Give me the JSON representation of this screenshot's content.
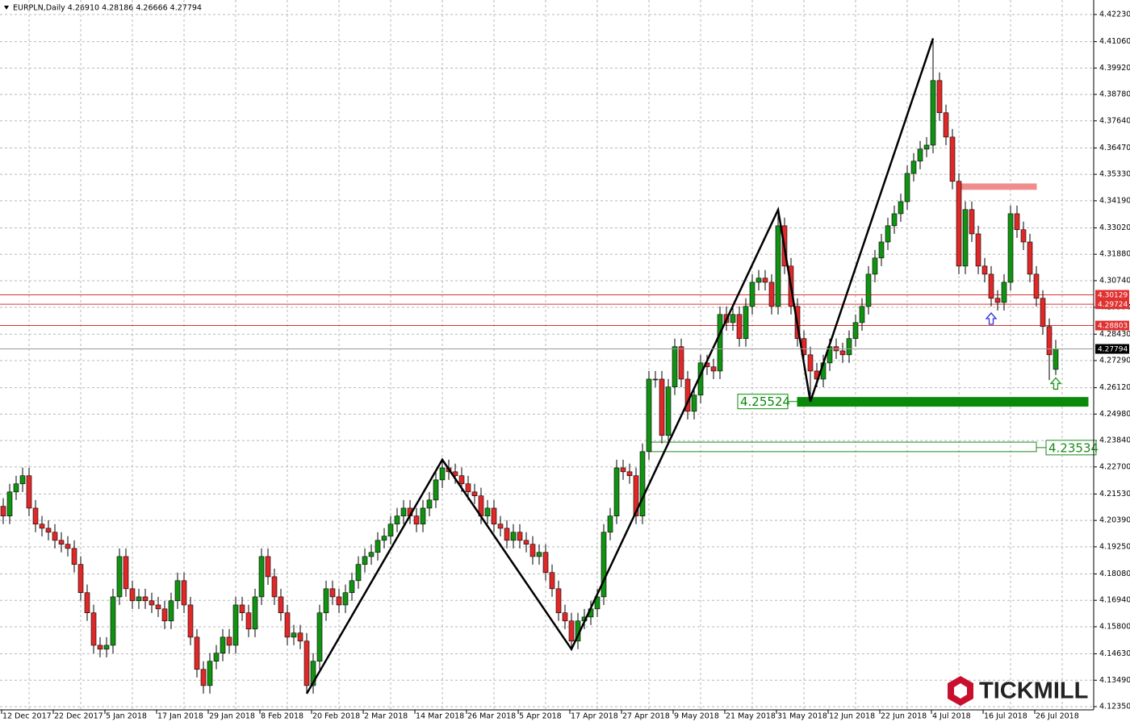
{
  "chart_data": {
    "type": "candlestick",
    "title": "EURPLN,Daily  4.26910 4.28186 4.26666 4.27794",
    "brand": "TICKMILL",
    "categories": [
      "12 Dec 2017",
      null,
      null,
      null,
      null,
      null,
      null,
      null,
      "22 Dec 2017",
      null,
      null,
      null,
      null,
      null,
      null,
      null,
      "5 Jan 2018",
      null,
      null,
      null,
      null,
      null,
      null,
      null,
      "17 Jan 2018",
      null,
      null,
      null,
      null,
      null,
      null,
      null,
      "29 Jan 2018",
      null,
      null,
      null,
      null,
      null,
      null,
      null,
      "8 Feb 2018",
      null,
      null,
      null,
      null,
      null,
      null,
      null,
      "20 Feb 2018",
      null,
      null,
      null,
      null,
      null,
      null,
      null,
      "2 Mar 2018",
      null,
      null,
      null,
      null,
      null,
      null,
      null,
      "14 Mar 2018",
      null,
      null,
      null,
      null,
      null,
      null,
      null,
      "26 Mar 2018",
      null,
      null,
      null,
      null,
      null,
      null,
      null,
      "5 Apr 2018",
      null,
      null,
      null,
      null,
      null,
      null,
      null,
      "17 Apr 2018",
      null,
      null,
      null,
      null,
      null,
      null,
      null,
      "27 Apr 2018",
      null,
      null,
      null,
      null,
      null,
      null,
      null,
      "9 May 2018",
      null,
      null,
      null,
      null,
      null,
      null,
      null,
      "21 May 2018",
      null,
      null,
      null,
      null,
      null,
      null,
      null,
      "31 May 2018",
      null,
      null,
      null,
      null,
      null,
      null,
      null,
      "12 Jun 2018",
      null,
      null,
      null,
      null,
      null,
      null,
      null,
      "22 Jun 2018",
      null,
      null,
      null,
      null,
      null,
      null,
      null,
      "4 Jul 2018",
      null,
      null,
      null,
      null,
      null,
      null,
      null,
      "16 Jul 2018",
      null,
      null,
      null,
      null,
      null,
      null,
      null,
      "26 Jul 2018",
      null,
      null,
      null
    ],
    "open": [
      4.21,
      4.2058,
      4.2162,
      4.2197,
      4.2232,
      4.2092,
      4.2023,
      4.2005,
      4.1988,
      4.1953,
      4.1936,
      4.1918,
      4.1849,
      4.1727,
      4.164,
      4.15,
      4.1483,
      4.15,
      4.1709,
      4.1883,
      4.1744,
      4.1692,
      4.1709,
      4.1692,
      4.1674,
      4.1657,
      4.1605,
      4.1692,
      4.1779,
      4.1674,
      4.1535,
      4.1396,
      4.1326,
      4.1431,
      4.1466,
      4.1535,
      4.15,
      4.1674,
      4.164,
      4.157,
      4.1709,
      4.1883,
      4.1796,
      4.1709,
      4.164,
      4.1535,
      4.1553,
      4.1518,
      4.1326,
      4.1431,
      4.164,
      4.1744,
      4.1709,
      4.1674,
      4.1727,
      4.1779,
      4.1849,
      4.1883,
      4.1901,
      4.1953,
      4.1971,
      4.2023,
      4.2058,
      4.2092,
      4.2058,
      4.2023,
      4.2092,
      4.2127,
      4.2214,
      4.2266,
      4.2249,
      4.2232,
      4.2197,
      4.2162,
      4.2145,
      4.2058,
      4.2092,
      4.2023,
      4.2005,
      4.1953,
      4.1988,
      4.1953,
      4.1936,
      4.1883,
      4.1901,
      4.1814,
      4.1744,
      4.164,
      4.1605,
      4.1518,
      4.1605,
      4.1622,
      4.1657,
      4.1709,
      4.1988,
      4.2058,
      4.2266,
      4.2249,
      4.2232,
      4.2058,
      4.2336,
      4.2649,
      4.2649,
      4.2406,
      4.2615,
      4.2789,
      4.2649,
      4.251,
      4.258,
      4.2719,
      4.2702,
      4.2684,
      4.2928,
      4.2893,
      4.2928,
      4.2824,
      4.2963,
      4.3067,
      4.3085,
      4.3067,
      4.2963,
      4.3311,
      4.3137,
      4.2963,
      4.2824,
      4.2754,
      4.2684,
      4.2649,
      4.2719,
      4.2789,
      4.2771,
      4.2754,
      4.2824,
      4.2893,
      4.2963,
      4.3102,
      4.3172,
      4.3241,
      4.3311,
      4.3363,
      4.3415,
      4.3537,
      4.359,
      4.3642,
      4.3659,
      4.3938,
      4.3799,
      4.3694,
      4.3503,
      4.3137,
      4.3381,
      4.3276,
      4.3137,
      4.3102,
      4.2998,
      4.298,
      4.3067,
      4.3363,
      4.3294,
      4.3241,
      4.3102,
      4.2998,
      4.2876,
      4.2691
    ],
    "high": [
      4.2135,
      4.2197,
      4.2232,
      4.2267,
      4.2267,
      4.2127,
      4.2058,
      4.204,
      4.2023,
      4.1988,
      4.1971,
      4.1953,
      4.1884,
      4.1762,
      4.1675,
      4.1535,
      4.1535,
      4.1744,
      4.1918,
      4.1918,
      4.1779,
      4.1744,
      4.1744,
      4.1727,
      4.1709,
      4.1692,
      4.1727,
      4.1814,
      4.1814,
      4.1709,
      4.157,
      4.1431,
      4.1466,
      4.1501,
      4.157,
      4.157,
      4.1709,
      4.1709,
      4.1675,
      4.1744,
      4.1918,
      4.1918,
      4.1831,
      4.1744,
      4.1675,
      4.1588,
      4.1588,
      4.1553,
      4.1466,
      4.1675,
      4.1779,
      4.1779,
      4.1744,
      4.1762,
      4.1814,
      4.1884,
      4.1918,
      4.1936,
      4.1988,
      4.2006,
      4.2058,
      4.2093,
      4.2127,
      4.2127,
      4.2093,
      4.2127,
      4.2162,
      4.2249,
      4.2301,
      4.2301,
      4.2284,
      4.2267,
      4.2232,
      4.2197,
      4.218,
      4.2127,
      4.2127,
      4.2058,
      4.204,
      4.2023,
      4.2023,
      4.1988,
      4.1971,
      4.1936,
      4.1936,
      4.1849,
      4.1779,
      4.1675,
      4.164,
      4.164,
      4.1657,
      4.1692,
      4.1744,
      4.2023,
      4.2093,
      4.2301,
      4.2301,
      4.2284,
      4.2267,
      4.2371,
      4.2684,
      4.2684,
      4.2684,
      4.265,
      4.2824,
      4.2824,
      4.2684,
      4.2615,
      4.2754,
      4.2754,
      4.2737,
      4.2963,
      4.2963,
      4.2963,
      4.2963,
      4.2998,
      4.3102,
      4.312,
      4.312,
      4.3102,
      4.338,
      4.3346,
      4.3172,
      4.2998,
      4.2859,
      4.2789,
      4.2719,
      4.2754,
      4.2824,
      4.2824,
      4.2806,
      4.2859,
      4.2928,
      4.2998,
      4.3137,
      4.3207,
      4.3276,
      4.3346,
      4.3398,
      4.345,
      4.3572,
      4.3625,
      4.3677,
      4.3694,
      4.412,
      4.3973,
      4.3834,
      4.3729,
      4.3538,
      4.3416,
      4.3416,
      4.3311,
      4.3172,
      4.3137,
      4.3033,
      4.3102,
      4.3398,
      4.3398,
      4.3329,
      4.3276,
      4.3137,
      4.3033,
      4.2911,
      4.28186
    ],
    "low": [
      4.2023,
      4.2023,
      4.2127,
      4.2162,
      4.2057,
      4.1988,
      4.197,
      4.1953,
      4.1918,
      4.1901,
      4.1883,
      4.1814,
      4.1692,
      4.1605,
      4.1465,
      4.1448,
      4.1448,
      4.1465,
      4.1674,
      4.1709,
      4.1657,
      4.1657,
      4.1657,
      4.1639,
      4.1622,
      4.157,
      4.157,
      4.1657,
      4.1639,
      4.15,
      4.1361,
      4.1291,
      4.1291,
      4.1396,
      4.1431,
      4.1465,
      4.1465,
      4.1605,
      4.1535,
      4.1535,
      4.1674,
      4.1761,
      4.1674,
      4.1605,
      4.15,
      4.15,
      4.1483,
      4.1291,
      4.1291,
      4.1396,
      4.1605,
      4.1674,
      4.1639,
      4.1639,
      4.1692,
      4.1744,
      4.1814,
      4.1848,
      4.1866,
      4.1918,
      4.1936,
      4.1988,
      4.2023,
      4.2023,
      4.1988,
      4.1988,
      4.2057,
      4.2092,
      4.2179,
      4.2214,
      4.2197,
      4.2162,
      4.2127,
      4.211,
      4.2023,
      4.2023,
      4.1988,
      4.197,
      4.1918,
      4.1918,
      4.1918,
      4.1901,
      4.1848,
      4.1848,
      4.1779,
      4.1709,
      4.1605,
      4.157,
      4.1483,
      4.1483,
      4.157,
      4.1587,
      4.1622,
      4.1674,
      4.1953,
      4.2023,
      4.2214,
      4.2197,
      4.2023,
      4.2023,
      4.2301,
      4.2614,
      4.2371,
      4.2371,
      4.258,
      4.2614,
      4.2475,
      4.2475,
      4.2545,
      4.2667,
      4.2649,
      4.2649,
      4.2858,
      4.2858,
      4.2789,
      4.2789,
      4.2928,
      4.3032,
      4.3032,
      4.2928,
      4.2928,
      4.3102,
      4.2928,
      4.2789,
      4.2719,
      4.2552,
      4.2614,
      4.2614,
      4.2684,
      4.2736,
      4.2719,
      4.2719,
      4.2789,
      4.2858,
      4.2928,
      4.3067,
      4.3137,
      4.3206,
      4.3276,
      4.3328,
      4.338,
      4.3502,
      4.3555,
      4.3607,
      4.3624,
      4.3764,
      4.3659,
      4.3468,
      4.3102,
      4.3102,
      4.3241,
      4.3102,
      4.3067,
      4.2963,
      4.2945,
      4.2945,
      4.3032,
      4.3259,
      4.3206,
      4.3067,
      4.2963,
      4.2841,
      4.2645,
      4.26666
    ],
    "close": [
      4.2058,
      4.2162,
      4.2197,
      4.2232,
      4.2092,
      4.2023,
      4.2005,
      4.1988,
      4.1953,
      4.1936,
      4.1918,
      4.1849,
      4.1727,
      4.164,
      4.15,
      4.1483,
      4.15,
      4.1709,
      4.1883,
      4.1744,
      4.1692,
      4.1709,
      4.1692,
      4.1674,
      4.1657,
      4.1605,
      4.1692,
      4.1779,
      4.1674,
      4.1535,
      4.1396,
      4.1326,
      4.1431,
      4.1466,
      4.1535,
      4.15,
      4.1674,
      4.164,
      4.157,
      4.1709,
      4.1883,
      4.1796,
      4.1709,
      4.164,
      4.1535,
      4.1553,
      4.1518,
      4.1326,
      4.1431,
      4.164,
      4.1744,
      4.1709,
      4.1674,
      4.1727,
      4.1779,
      4.1849,
      4.1883,
      4.1901,
      4.1953,
      4.1971,
      4.2023,
      4.2058,
      4.2092,
      4.2058,
      4.2023,
      4.2092,
      4.2127,
      4.2214,
      4.2266,
      4.2249,
      4.2232,
      4.2197,
      4.2162,
      4.2145,
      4.2058,
      4.2092,
      4.2023,
      4.2005,
      4.1953,
      4.1988,
      4.1953,
      4.1936,
      4.1883,
      4.1901,
      4.1814,
      4.1744,
      4.164,
      4.1605,
      4.1518,
      4.1605,
      4.1622,
      4.1657,
      4.1709,
      4.1988,
      4.2058,
      4.2266,
      4.2249,
      4.2232,
      4.2058,
      4.2336,
      4.2649,
      4.2649,
      4.2406,
      4.2615,
      4.2789,
      4.2649,
      4.251,
      4.258,
      4.2719,
      4.2702,
      4.2684,
      4.2928,
      4.2893,
      4.2928,
      4.2824,
      4.2963,
      4.3067,
      4.3085,
      4.3067,
      4.2963,
      4.3311,
      4.3137,
      4.2963,
      4.2824,
      4.2754,
      4.2684,
      4.2649,
      4.2719,
      4.2789,
      4.2771,
      4.2754,
      4.2824,
      4.2893,
      4.2963,
      4.3102,
      4.3172,
      4.3241,
      4.3311,
      4.3363,
      4.3415,
      4.3537,
      4.359,
      4.3642,
      4.3659,
      4.3938,
      4.3799,
      4.3694,
      4.3503,
      4.3137,
      4.3381,
      4.3276,
      4.3137,
      4.3102,
      4.2998,
      4.298,
      4.3067,
      4.3363,
      4.3294,
      4.3241,
      4.3102,
      4.2998,
      4.2876,
      4.2754,
      4.27794
    ],
    "bull_color": "#129212",
    "bear_color": "#e02828",
    "ylim": [
      4.12211,
      4.42857
    ],
    "yticks": [
      {
        "value": 4.4223,
        "label": "4.42230"
      },
      {
        "value": 4.4106,
        "label": "4.41060"
      },
      {
        "value": 4.3992,
        "label": "4.39920"
      },
      {
        "value": 4.3878,
        "label": "4.38780"
      },
      {
        "value": 4.3764,
        "label": "4.37640"
      },
      {
        "value": 4.3647,
        "label": "4.36470"
      },
      {
        "value": 4.3533,
        "label": "4.35330"
      },
      {
        "value": 4.3419,
        "label": "4.34190"
      },
      {
        "value": 4.3302,
        "label": "4.33020"
      },
      {
        "value": 4.3188,
        "label": "4.31880"
      },
      {
        "value": 4.3074,
        "label": "4.30740"
      },
      {
        "value": 4.2959,
        "label": "4.29590"
      },
      {
        "value": 4.2843,
        "label": "4.28430"
      },
      {
        "value": 4.2729,
        "label": "4.27290"
      },
      {
        "value": 4.2612,
        "label": "4.26120"
      },
      {
        "value": 4.2498,
        "label": "4.24980"
      },
      {
        "value": 4.2384,
        "label": "4.23840"
      },
      {
        "value": 4.227,
        "label": "4.22700"
      },
      {
        "value": 4.2153,
        "label": "4.21530"
      },
      {
        "value": 4.2039,
        "label": "4.20390"
      },
      {
        "value": 4.1925,
        "label": "4.19250"
      },
      {
        "value": 4.1808,
        "label": "4.18080"
      },
      {
        "value": 4.1694,
        "label": "4.16940"
      },
      {
        "value": 4.158,
        "label": "4.15800"
      },
      {
        "value": 4.1463,
        "label": "4.14630"
      },
      {
        "value": 4.1349,
        "label": "4.13490"
      },
      {
        "value": 4.1235,
        "label": "4.12350"
      }
    ],
    "grid": true,
    "levels": [
      {
        "value": 4.30129,
        "color": "#e03030"
      },
      {
        "value": 4.29724,
        "color": "#e03030"
      },
      {
        "value": 4.28803,
        "color": "#e03030"
      }
    ],
    "zigzag": {
      "x": [
        47,
        68,
        88,
        120,
        125,
        144
      ],
      "values": [
        4.1291,
        4.2301,
        4.1483,
        4.338,
        4.2552,
        4.412
      ],
      "color": "#000000"
    },
    "zones": [
      {
        "top": 4.257,
        "bottom": 4.2532,
        "start": 123,
        "end": 168,
        "color": "#0a8a0a",
        "filled": true,
        "label": 4.25524,
        "label_side": "left"
      },
      {
        "top": 4.2377,
        "bottom": 4.2336,
        "start": 100,
        "end": 160,
        "color": "#1a8a1a",
        "filled": false,
        "label": 4.23534,
        "label_side": "right"
      },
      {
        "top": 4.3492,
        "bottom": 4.3468,
        "start": 148,
        "end": 160,
        "color": "#f08c8c",
        "filled": true
      }
    ],
    "signals": [
      {
        "x": 153,
        "value": 4.291,
        "color": "#2f2fe0"
      },
      {
        "x": 163,
        "value": 4.263,
        "color": "#1a9a1a"
      }
    ]
  }
}
